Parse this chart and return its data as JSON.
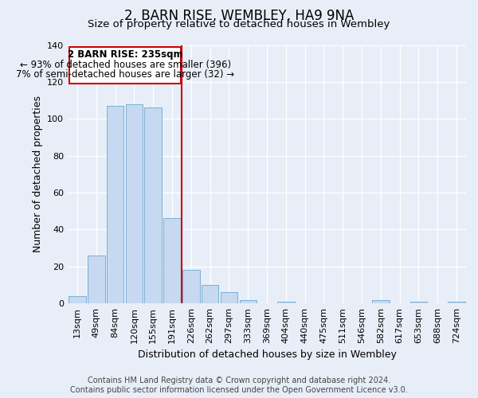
{
  "title": "2, BARN RISE, WEMBLEY, HA9 9NA",
  "subtitle": "Size of property relative to detached houses in Wembley",
  "xlabel": "Distribution of detached houses by size in Wembley",
  "ylabel": "Number of detached properties",
  "bar_labels": [
    "13sqm",
    "49sqm",
    "84sqm",
    "120sqm",
    "155sqm",
    "191sqm",
    "226sqm",
    "262sqm",
    "297sqm",
    "333sqm",
    "369sqm",
    "404sqm",
    "440sqm",
    "475sqm",
    "511sqm",
    "546sqm",
    "582sqm",
    "617sqm",
    "653sqm",
    "688sqm",
    "724sqm"
  ],
  "bar_values": [
    4,
    26,
    107,
    108,
    106,
    46,
    18,
    10,
    6,
    2,
    0,
    1,
    0,
    0,
    0,
    0,
    2,
    0,
    1,
    0,
    1
  ],
  "bar_color": "#c6d9f0",
  "bar_edge_color": "#7bafd4",
  "vline_color": "#cc0000",
  "annotation_box_color": "#cc0000",
  "annotation_text_line1": "2 BARN RISE: 235sqm",
  "annotation_text_line2": "← 93% of detached houses are smaller (396)",
  "annotation_text_line3": "7% of semi-detached houses are larger (32) →",
  "annotation_fontsize": 8.5,
  "ylim": [
    0,
    140
  ],
  "yticks": [
    0,
    20,
    40,
    60,
    80,
    100,
    120,
    140
  ],
  "background_color": "#e8eef8",
  "footer_line1": "Contains HM Land Registry data © Crown copyright and database right 2024.",
  "footer_line2": "Contains public sector information licensed under the Open Government Licence v3.0.",
  "title_fontsize": 12,
  "subtitle_fontsize": 9.5,
  "axis_label_fontsize": 9,
  "tick_fontsize": 8
}
